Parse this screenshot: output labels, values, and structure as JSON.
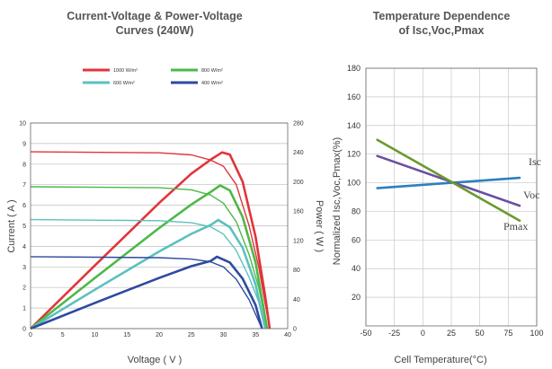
{
  "chart_data": [
    {
      "type": "line",
      "title": "Current-Voltage & Power-Voltage",
      "subtitle": "Curves (240W)",
      "xlabel": "Voltage ( V )",
      "ylabel": "Current ( A )",
      "y2label": "Power ( W )",
      "xlim": [
        0,
        40
      ],
      "ylim": [
        0,
        10
      ],
      "y2lim": [
        0,
        280
      ],
      "xticks": [
        "0",
        "5",
        "10",
        "15",
        "20",
        "25",
        "30",
        "35",
        "40"
      ],
      "yticks": [
        "0",
        "1",
        "2",
        "3",
        "4",
        "5",
        "6",
        "7",
        "8",
        "9",
        "10"
      ],
      "y2ticks": [
        "0",
        "40",
        "80",
        "120",
        "160",
        "200",
        "240",
        "280"
      ],
      "legend": [
        "1000 W/m²",
        "800 W/m²",
        "600 W/m²",
        "400 W/m²"
      ],
      "legend_colors": [
        "#e0353b",
        "#4db848",
        "#5bc0c0",
        "#2e4a9e"
      ],
      "series": [
        {
          "name": "1000 W/m²",
          "isc": 8.6,
          "voc": 37.2,
          "vmp": 29.8,
          "pmax": 240,
          "iv": [
            [
              0,
              8.6
            ],
            [
              20,
              8.55
            ],
            [
              25,
              8.45
            ],
            [
              28,
              8.2
            ],
            [
              30,
              7.9
            ],
            [
              32,
              7.0
            ],
            [
              34,
              5.0
            ],
            [
              35.5,
              3.0
            ],
            [
              36.5,
              1.2
            ],
            [
              37.2,
              0
            ]
          ],
          "pv": [
            [
              0,
              0
            ],
            [
              10,
              86
            ],
            [
              20,
              171
            ],
            [
              25,
              211
            ],
            [
              28,
              230
            ],
            [
              29.8,
              240
            ],
            [
              31,
              237
            ],
            [
              33,
              200
            ],
            [
              35,
              125
            ],
            [
              36.5,
              44
            ],
            [
              37.2,
              0
            ]
          ]
        },
        {
          "name": "800 W/m²",
          "isc": 6.9,
          "voc": 36.8,
          "vmp": 29.5,
          "pmax": 195,
          "iv": [
            [
              0,
              6.9
            ],
            [
              20,
              6.85
            ],
            [
              25,
              6.75
            ],
            [
              28,
              6.5
            ],
            [
              30,
              6.1
            ],
            [
              32,
              5.2
            ],
            [
              34,
              3.6
            ],
            [
              35.5,
              2.0
            ],
            [
              36.8,
              0
            ]
          ],
          "pv": [
            [
              0,
              0
            ],
            [
              10,
              69
            ],
            [
              20,
              137
            ],
            [
              25,
              169
            ],
            [
              28,
              186
            ],
            [
              29.5,
              195
            ],
            [
              31,
              188
            ],
            [
              33,
              152
            ],
            [
              35,
              90
            ],
            [
              36.8,
              0
            ]
          ]
        },
        {
          "name": "600 W/m²",
          "isc": 5.3,
          "voc": 36.5,
          "vmp": 29.2,
          "pmax": 148,
          "iv": [
            [
              0,
              5.3
            ],
            [
              20,
              5.25
            ],
            [
              25,
              5.15
            ],
            [
              28,
              4.95
            ],
            [
              30,
              4.6
            ],
            [
              32,
              3.8
            ],
            [
              34,
              2.5
            ],
            [
              35.5,
              1.3
            ],
            [
              36.5,
              0
            ]
          ],
          "pv": [
            [
              0,
              0
            ],
            [
              10,
              53
            ],
            [
              20,
              105
            ],
            [
              25,
              129
            ],
            [
              28,
              141
            ],
            [
              29.2,
              148
            ],
            [
              31,
              138
            ],
            [
              33,
              110
            ],
            [
              35,
              60
            ],
            [
              36.5,
              0
            ]
          ]
        },
        {
          "name": "400 W/m²",
          "isc": 3.5,
          "voc": 36.0,
          "vmp": 29.0,
          "pmax": 98,
          "iv": [
            [
              0,
              3.5
            ],
            [
              20,
              3.45
            ],
            [
              25,
              3.38
            ],
            [
              28,
              3.25
            ],
            [
              30,
              3.0
            ],
            [
              32,
              2.4
            ],
            [
              34,
              1.4
            ],
            [
              36,
              0
            ]
          ],
          "pv": [
            [
              0,
              0
            ],
            [
              10,
              35
            ],
            [
              20,
              69
            ],
            [
              25,
              85
            ],
            [
              28,
              92
            ],
            [
              29,
              98
            ],
            [
              31,
              90
            ],
            [
              33,
              68
            ],
            [
              35,
              32
            ],
            [
              36,
              0
            ]
          ]
        }
      ]
    },
    {
      "type": "line",
      "title": "Temperature Dependence",
      "subtitle": "of Isc,Voc,Pmax",
      "xlabel": "Cell Temperature(°C)",
      "ylabel": "Normalized Isc,Voc,Pmax(%)",
      "xlim": [
        -50,
        100
      ],
      "ylim": [
        0,
        180
      ],
      "xticks": [
        "-50",
        "-25",
        "0",
        "25",
        "50",
        "75",
        "100"
      ],
      "yticks": [
        "20",
        "40",
        "60",
        "80",
        "100",
        "120",
        "140",
        "160",
        "180"
      ],
      "grid": true,
      "series": [
        {
          "name": "Isc",
          "color": "#2e7fc0",
          "x": [
            -40,
            85
          ],
          "y": [
            96.2,
            103.4
          ]
        },
        {
          "name": "Voc",
          "color": "#6a4fa3",
          "x": [
            -40,
            85
          ],
          "y": [
            118.7,
            84.0
          ]
        },
        {
          "name": "Pmax",
          "color": "#6a9a2e",
          "x": [
            -40,
            85
          ],
          "y": [
            130.0,
            73.5
          ]
        }
      ]
    }
  ]
}
